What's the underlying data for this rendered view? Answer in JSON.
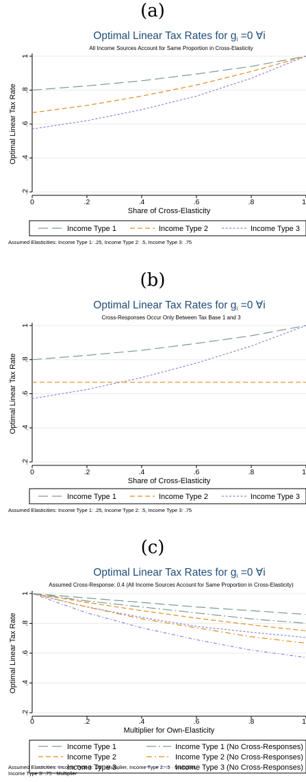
{
  "colors": {
    "type1": "#7a9a8c",
    "type2": "#e08a1e",
    "type3": "#8b84d6",
    "title": "#1f4d78"
  },
  "chart_data": [
    {
      "panel_label": "(a)",
      "type": "line",
      "title_main": "Optimal Linear Tax Rates for g",
      "title_sub_index": "i",
      "title_tail": " =0 ∀i",
      "subtitle": "All Income Sources Account for Same Proportion in Cross-Elasticity",
      "xlabel": "Share of Cross-Elasticity",
      "ylabel": "Optimal Linear Tax Rate",
      "xlim": [
        0,
        1
      ],
      "ylim": [
        0.2,
        1
      ],
      "xticks": [
        "0",
        ".2",
        ".4",
        ".6",
        ".8",
        "1"
      ],
      "yticks": [
        "1",
        ".8",
        ".6",
        ".4",
        ".2"
      ],
      "x": [
        0,
        0.2,
        0.4,
        0.6,
        0.8,
        1
      ],
      "series": [
        {
          "name": "Income Type 1",
          "style": "longdash",
          "color_key": "type1",
          "values": [
            0.8,
            0.825,
            0.855,
            0.895,
            0.94,
            1.0
          ]
        },
        {
          "name": "Income Type 2",
          "style": "dash",
          "color_key": "type2",
          "values": [
            0.667,
            0.71,
            0.765,
            0.83,
            0.91,
            1.0
          ]
        },
        {
          "name": "Income Type 3",
          "style": "shortdash",
          "color_key": "type3",
          "values": [
            0.571,
            0.62,
            0.685,
            0.765,
            0.87,
            1.0
          ]
        }
      ],
      "note": "Assumed Elasticities: Income Type 1: .25, Income Type 2: .5, Income Type 3: .75"
    },
    {
      "panel_label": "(b)",
      "type": "line",
      "title_main": "Optimal Linear Tax Rates for g",
      "title_sub_index": "i",
      "title_tail": " =0 ∀i",
      "subtitle": "Cross-Responses Occur Only Between Tax Base 1 and 3",
      "xlabel": "Share of Cross-Elasticity",
      "ylabel": "Optimal Linear Tax Rate",
      "xlim": [
        0,
        1
      ],
      "ylim": [
        0.2,
        1
      ],
      "xticks": [
        "0",
        ".2",
        ".4",
        ".6",
        ".8",
        "1"
      ],
      "yticks": [
        "1",
        ".8",
        ".6",
        ".4",
        ".2"
      ],
      "x": [
        0,
        0.2,
        0.4,
        0.6,
        0.8,
        1
      ],
      "series": [
        {
          "name": "Income Type 1",
          "style": "longdash",
          "color_key": "type1",
          "values": [
            0.8,
            0.825,
            0.855,
            0.895,
            0.94,
            1.0
          ]
        },
        {
          "name": "Income Type 2",
          "style": "dash",
          "color_key": "type2",
          "values": [
            0.667,
            0.667,
            0.667,
            0.667,
            0.667,
            0.667
          ]
        },
        {
          "name": "Income Type 3",
          "style": "shortdash",
          "color_key": "type3",
          "values": [
            0.571,
            0.625,
            0.695,
            0.78,
            0.88,
            1.0
          ]
        }
      ],
      "note": "Assumed Elasticities: Income Type 1: .25, Income Type 2: .5, Income Type 3: .75"
    },
    {
      "panel_label": "(c)",
      "type": "line",
      "title_main": "Optimal Linear Tax Rates for g",
      "title_sub_index": "i",
      "title_tail": " =0 ∀i",
      "subtitle": "Assumed Cross-Response: 0.4 (All Income Sources Account for Same Proportion in Cross-Elasticity)",
      "xlabel": "Multiplier for Own-Elasticity",
      "ylabel": "Optimal Linear Tax Rate",
      "xlim": [
        0,
        1
      ],
      "ylim": [
        0.2,
        1
      ],
      "xticks": [
        "0",
        ".2",
        ".4",
        ".6",
        ".8",
        "1"
      ],
      "yticks": [
        "1",
        ".8",
        ".6",
        ".4",
        ".2"
      ],
      "x": [
        0,
        0.2,
        0.4,
        0.6,
        0.8,
        1
      ],
      "series": [
        {
          "name": "Income Type 1",
          "style": "longdash",
          "color_key": "type1",
          "values": [
            1.0,
            0.97,
            0.94,
            0.91,
            0.885,
            0.86
          ]
        },
        {
          "name": "Income Type 2",
          "style": "dash",
          "color_key": "type2",
          "values": [
            1.0,
            0.94,
            0.885,
            0.835,
            0.79,
            0.75
          ]
        },
        {
          "name": "Income Type 3",
          "style": "shortdash",
          "color_key": "type3",
          "values": [
            1.0,
            0.91,
            0.84,
            0.78,
            0.74,
            0.705
          ]
        },
        {
          "name": "Income Type 1 (No Cross-Responses)",
          "style": "longdashdot",
          "color_key": "type1",
          "values": [
            1.0,
            0.95,
            0.91,
            0.87,
            0.83,
            0.8
          ]
        },
        {
          "name": "Income Type 2 (No Cross-Responses)",
          "style": "dashdot",
          "color_key": "type2",
          "values": [
            1.0,
            0.91,
            0.83,
            0.77,
            0.71,
            0.667
          ]
        },
        {
          "name": "Income Type 3 (No Cross-Responses)",
          "style": "dotdash",
          "color_key": "type3",
          "values": [
            1.0,
            0.87,
            0.77,
            0.69,
            0.62,
            0.571
          ]
        }
      ],
      "note_lines": [
        "Assumed Elasticities: Income Type 1: .25 · Multiplier, Income Type 2: .5 · Multiplier,",
        "Income Type 3: .75 · Multiplier"
      ]
    }
  ]
}
